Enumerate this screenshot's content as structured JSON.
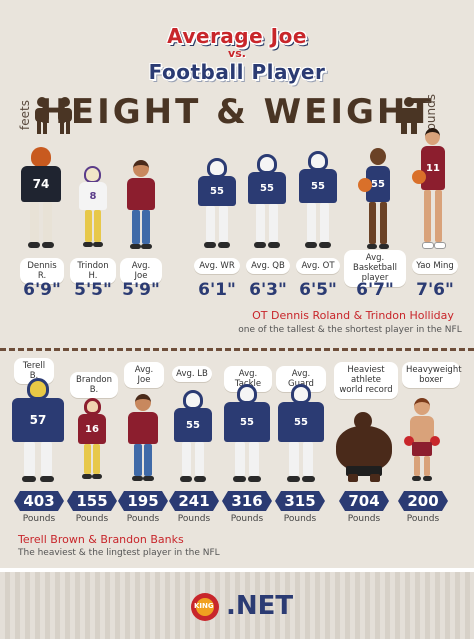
{
  "header": {
    "title_line1": "Average Joe",
    "vs": "vs.",
    "title_line2": "Football Player",
    "main_title": "HEIGHT & WEIGHT",
    "height_unit": "feets",
    "weight_unit": "Pounds"
  },
  "height_section": {
    "people": [
      {
        "label": "Dennis R.",
        "height": "6'9\"",
        "jersey": "74"
      },
      {
        "label": "Trindon H.",
        "height": "5'5\"",
        "jersey": "8"
      },
      {
        "label": "Avg. Joe",
        "height": "5'9\"",
        "jersey": ""
      },
      {
        "label": "Avg. WR",
        "height": "6'1\"",
        "jersey": "55"
      },
      {
        "label": "Avg. QB",
        "height": "6'3\"",
        "jersey": "55"
      },
      {
        "label": "Avg. OT",
        "height": "6'5\"",
        "jersey": "55"
      },
      {
        "label": "Avg. Basketball player",
        "height": "6'7\"",
        "jersey": "55"
      },
      {
        "label": "Yao Ming",
        "height": "7'6\"",
        "jersey": "11"
      }
    ],
    "note_title": "OT Dennis Roland & Trindon Holliday",
    "note_sub": "one of the tallest & the shortest player in the NFL"
  },
  "weight_section": {
    "people": [
      {
        "label": "Terell B.",
        "weight": "403",
        "unit": "Pounds",
        "jersey": "57"
      },
      {
        "label": "Brandon B.",
        "weight": "155",
        "unit": "Pounds",
        "jersey": "16"
      },
      {
        "label": "Avg. Joe",
        "weight": "195",
        "unit": "Pounds",
        "jersey": ""
      },
      {
        "label": "Avg. LB",
        "weight": "241",
        "unit": "Pounds",
        "jersey": "55"
      },
      {
        "label": "Avg. Tackle",
        "weight": "316",
        "unit": "Pounds",
        "jersey": "55"
      },
      {
        "label": "Avg. Guard",
        "weight": "315",
        "unit": "Pounds",
        "jersey": "55"
      },
      {
        "label": "Heaviest athlete world record",
        "weight": "704",
        "unit": "Pounds",
        "jersey": ""
      },
      {
        "label": "Heavyweight boxer",
        "weight": "200",
        "unit": "Pounds",
        "jersey": ""
      }
    ],
    "note_title": "Terell Brown & Brandon Banks",
    "note_sub": "The heaviest & the lingtest player in the NFL"
  },
  "footer": {
    "logo_text": ".NET",
    "logo_badge": "KING"
  },
  "colors": {
    "navy": "#2b3b73",
    "red": "#c8262b",
    "brown": "#4a3524",
    "skin_dark": "#6b4226",
    "skin_light": "#d9a27a"
  }
}
